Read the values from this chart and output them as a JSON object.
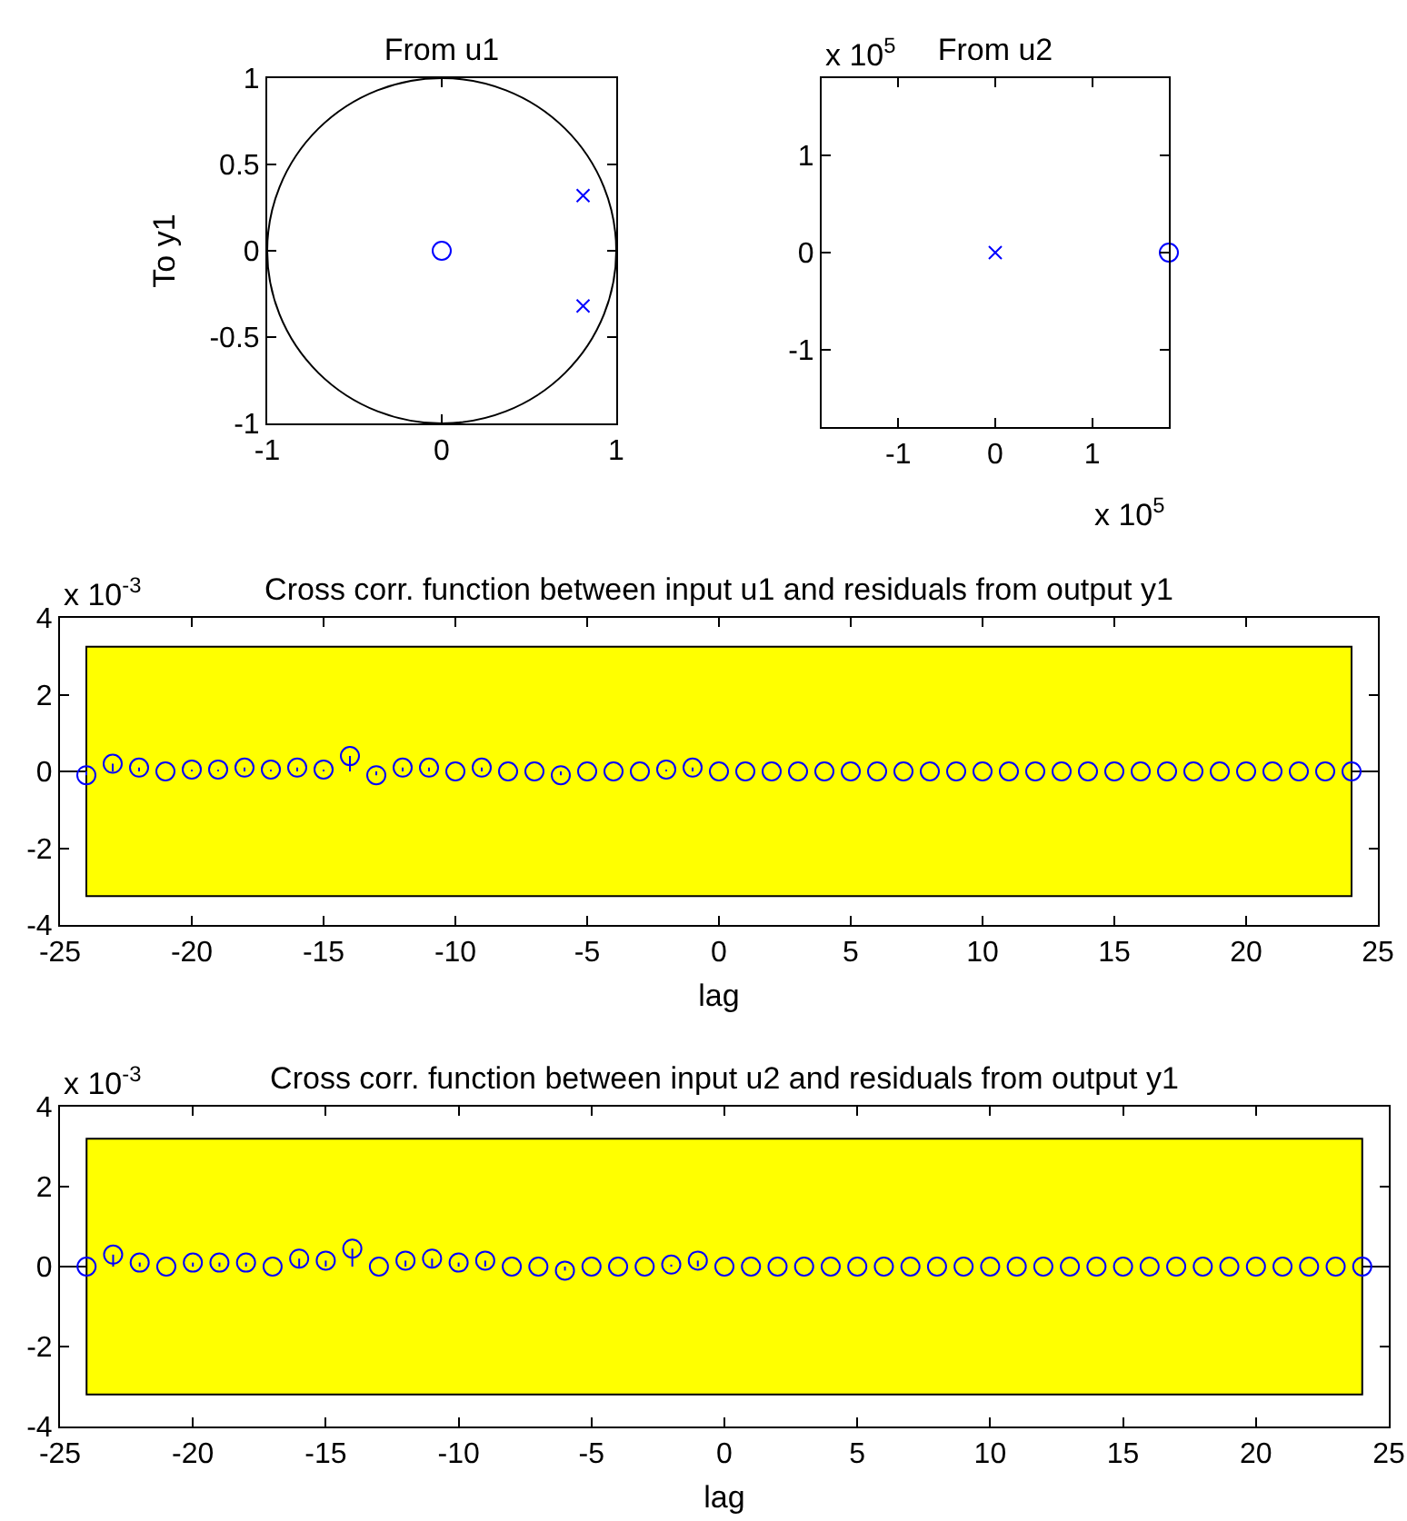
{
  "chart_data": [
    {
      "type": "scatter",
      "title": "From u1",
      "ylabel": "To y1",
      "xlim": [
        -1,
        1
      ],
      "ylim": [
        -1,
        1
      ],
      "xticks": [
        -1,
        0,
        1
      ],
      "yticks": [
        -1,
        -0.5,
        0,
        0.5,
        1
      ],
      "series": [
        {
          "color": "#0000ff",
          "marker": "circle",
          "x": [
            0
          ],
          "values": [
            0
          ]
        },
        {
          "color": "#0000ff",
          "marker": "cross",
          "x": [
            0.81,
            0.81
          ],
          "values": [
            0.32,
            -0.32
          ]
        }
      ]
    },
    {
      "type": "scatter",
      "title": "From u2",
      "xlim": [
        -1.79,
        1.79
      ],
      "ylim": [
        -1.79,
        1.79
      ],
      "xticks": [
        -1,
        0,
        1
      ],
      "yticks": [
        -1,
        0,
        1
      ],
      "annotations": [
        "x 10$^{5}$",
        "x 10$^{5}$"
      ],
      "series": [
        {
          "color": "#0000ff",
          "marker": "circle",
          "x": [
            1.79
          ],
          "values": [
            0
          ]
        },
        {
          "color": "#0000ff",
          "marker": "cross",
          "x": [
            0
          ],
          "values": [
            0
          ]
        }
      ]
    },
    {
      "type": "lollipop",
      "title": "Cross corr. function between input u1 and residuals from output y1",
      "xlabel": "lag",
      "annotations": [
        "x 10$^{-3}$"
      ],
      "xlim": [
        -25,
        25
      ],
      "xticks": [
        -25,
        -20,
        -15,
        -10,
        -5,
        0,
        5,
        10,
        15,
        20,
        25
      ],
      "ylim": [
        -4,
        4
      ],
      "yticks": [
        -4,
        -2,
        0,
        2,
        4
      ],
      "color": "#0000ff",
      "marker": "circle",
      "x": [
        -24,
        -23,
        -22,
        -21,
        -20,
        -19,
        -18,
        -17,
        -16,
        -15,
        -14,
        -13,
        -12,
        -11,
        -10,
        -9,
        -8,
        -7,
        -6,
        -5,
        -4,
        -3,
        -2,
        -1,
        0,
        1,
        2,
        3,
        4,
        5,
        6,
        7,
        8,
        9,
        10,
        11,
        12,
        13,
        14,
        15,
        16,
        17,
        18,
        19,
        20,
        21,
        22,
        23,
        24
      ],
      "values": [
        -0.1,
        0.2,
        0.1,
        0,
        0.05,
        0.05,
        0.1,
        0.05,
        0.1,
        0.05,
        0.4,
        -0.1,
        0.1,
        0.1,
        0,
        0.1,
        0,
        0,
        -0.1,
        0,
        0,
        0,
        0.05,
        0.1,
        0,
        0,
        0,
        0,
        0,
        0,
        0,
        0,
        0,
        0,
        0,
        0,
        0,
        0,
        0,
        0,
        0,
        0,
        0,
        0,
        0,
        0,
        0,
        0,
        0
      ],
      "bands": [
        {
          "axis": "y",
          "from": -3.25,
          "to": 3.25,
          "color": "#ffff00"
        }
      ],
      "ref_lines": [
        {
          "axis": "y",
          "value": 0,
          "color": "#000000"
        }
      ]
    },
    {
      "type": "lollipop",
      "title": "Cross corr. function between input u2 and residuals from output y1",
      "xlabel": "lag",
      "annotations": [
        "x 10$^{-3}$"
      ],
      "xlim": [
        -25,
        25
      ],
      "xticks": [
        -25,
        -20,
        -15,
        -10,
        -5,
        0,
        5,
        10,
        15,
        20,
        25
      ],
      "ylim": [
        -4,
        4
      ],
      "yticks": [
        -4,
        -2,
        0,
        2,
        4
      ],
      "color": "#0000ff",
      "marker": "circle",
      "x": [
        -24,
        -23,
        -22,
        -21,
        -20,
        -19,
        -18,
        -17,
        -16,
        -15,
        -14,
        -13,
        -12,
        -11,
        -10,
        -9,
        -8,
        -7,
        -6,
        -5,
        -4,
        -3,
        -2,
        -1,
        0,
        1,
        2,
        3,
        4,
        5,
        6,
        7,
        8,
        9,
        10,
        11,
        12,
        13,
        14,
        15,
        16,
        17,
        18,
        19,
        20,
        21,
        22,
        23,
        24
      ],
      "values": [
        0,
        0.3,
        0.1,
        0,
        0.1,
        0.1,
        0.1,
        0,
        0.2,
        0.15,
        0.45,
        0,
        0.15,
        0.2,
        0.1,
        0.15,
        0,
        0,
        -0.1,
        0,
        0,
        0,
        0.05,
        0.15,
        0,
        0,
        0,
        0,
        0,
        0,
        0,
        0,
        0,
        0,
        0,
        0,
        0,
        0,
        0,
        0,
        0,
        0,
        0,
        0,
        0,
        0,
        0,
        0,
        0
      ],
      "bands": [
        {
          "axis": "y",
          "from": -3.2,
          "to": 3.2,
          "color": "#ffff00"
        }
      ],
      "ref_lines": [
        {
          "axis": "y",
          "value": 0,
          "color": "#000000"
        }
      ]
    }
  ]
}
